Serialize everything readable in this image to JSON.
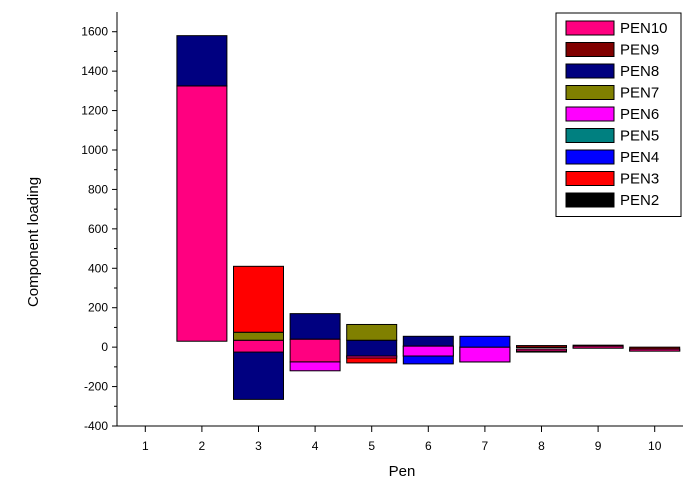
{
  "chart_data": {
    "type": "bar",
    "stacked": true,
    "title": "",
    "xlabel": "Pen",
    "ylabel": "Component loading",
    "categories": [
      "1",
      "2",
      "3",
      "4",
      "5",
      "6",
      "7",
      "8",
      "9",
      "10"
    ],
    "ylim": [
      -400,
      1700
    ],
    "yticks": [
      "-400",
      "-200",
      "0",
      "200",
      "400",
      "600",
      "800",
      "1000",
      "1200",
      "1400",
      "1600"
    ],
    "grid": false,
    "legend_position": "top-right",
    "series": [
      {
        "name": "PEN10",
        "color": "#ff0080",
        "segments": [
          null,
          [
            30,
            1325
          ],
          [
            -25,
            35
          ],
          [
            -75,
            40
          ],
          [
            -45,
            -45
          ],
          [
            -45,
            5
          ],
          [
            -75,
            0
          ],
          [
            -10,
            -10
          ],
          [
            -5,
            5
          ],
          [
            -10,
            -10
          ]
        ]
      },
      {
        "name": "PEN9",
        "color": "#800000",
        "segments": [
          null,
          null,
          null,
          null,
          null,
          null,
          null,
          [
            0,
            8
          ],
          [
            -5,
            10
          ],
          [
            -20,
            0
          ]
        ]
      },
      {
        "name": "PEN8",
        "color": "#000080",
        "segments": [
          null,
          [
            1325,
            1580
          ],
          [
            -265,
            -20
          ],
          [
            40,
            170
          ],
          [
            -45,
            35
          ],
          [
            5,
            55
          ],
          [
            -75,
            0
          ],
          null,
          null,
          null
        ]
      },
      {
        "name": "PEN7",
        "color": "#808000",
        "segments": [
          null,
          null,
          [
            35,
            75
          ],
          null,
          [
            35,
            115
          ],
          null,
          null,
          [
            -25,
            -10
          ],
          null,
          null
        ]
      },
      {
        "name": "PEN6",
        "color": "#ff00ff",
        "segments": [
          null,
          null,
          null,
          [
            -120,
            -75
          ],
          null,
          [
            -45,
            5
          ],
          [
            -75,
            0
          ],
          null,
          null,
          null
        ]
      },
      {
        "name": "PEN5",
        "color": "#008080",
        "segments": [
          null,
          null,
          null,
          null,
          null,
          null,
          null,
          null,
          null,
          null
        ]
      },
      {
        "name": "PEN4",
        "color": "#0000ff",
        "segments": [
          null,
          null,
          null,
          null,
          null,
          [
            -85,
            -45
          ],
          [
            0,
            55
          ],
          null,
          null,
          null
        ]
      },
      {
        "name": "PEN3",
        "color": "#ff0000",
        "segments": [
          null,
          null,
          [
            75,
            410
          ],
          null,
          [
            -80,
            -45
          ],
          null,
          null,
          null,
          null,
          null
        ]
      },
      {
        "name": "PEN2",
        "color": "#000000",
        "segments": [
          null,
          null,
          null,
          null,
          null,
          null,
          null,
          null,
          null,
          null
        ]
      }
    ]
  }
}
